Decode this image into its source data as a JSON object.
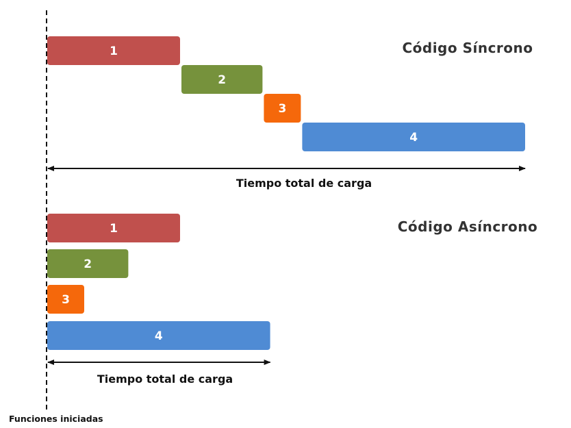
{
  "start_label": "Funciones iniciadas",
  "colors": {
    "task1": "#c0504d",
    "task2": "#76923c",
    "task3": "#f5680b",
    "task4": "#4f8bd4",
    "line": "#111111",
    "title": "#333333"
  },
  "sections": [
    {
      "title": "Código Síncrono",
      "total_label": "Tiempo total de carga",
      "tasks": [
        {
          "label": "1",
          "start": 0,
          "end": 7,
          "color": "#c0504d"
        },
        {
          "label": "2",
          "start": 7,
          "end": 11.3,
          "color": "#76923c"
        },
        {
          "label": "3",
          "start": 11.3,
          "end": 13.3,
          "color": "#f5680b"
        },
        {
          "label": "4",
          "start": 13.3,
          "end": 25,
          "color": "#4f8bd4"
        }
      ],
      "total_time": 25
    },
    {
      "title": "Código Asíncrono",
      "total_label": "Tiempo total de carga",
      "tasks": [
        {
          "label": "1",
          "start": 0,
          "end": 7,
          "color": "#c0504d"
        },
        {
          "label": "2",
          "start": 0,
          "end": 4.3,
          "color": "#76923c"
        },
        {
          "label": "3",
          "start": 0,
          "end": 2,
          "color": "#f5680b"
        },
        {
          "label": "4",
          "start": 0,
          "end": 11.7,
          "color": "#4f8bd4"
        }
      ],
      "total_time": 11.7
    }
  ]
}
